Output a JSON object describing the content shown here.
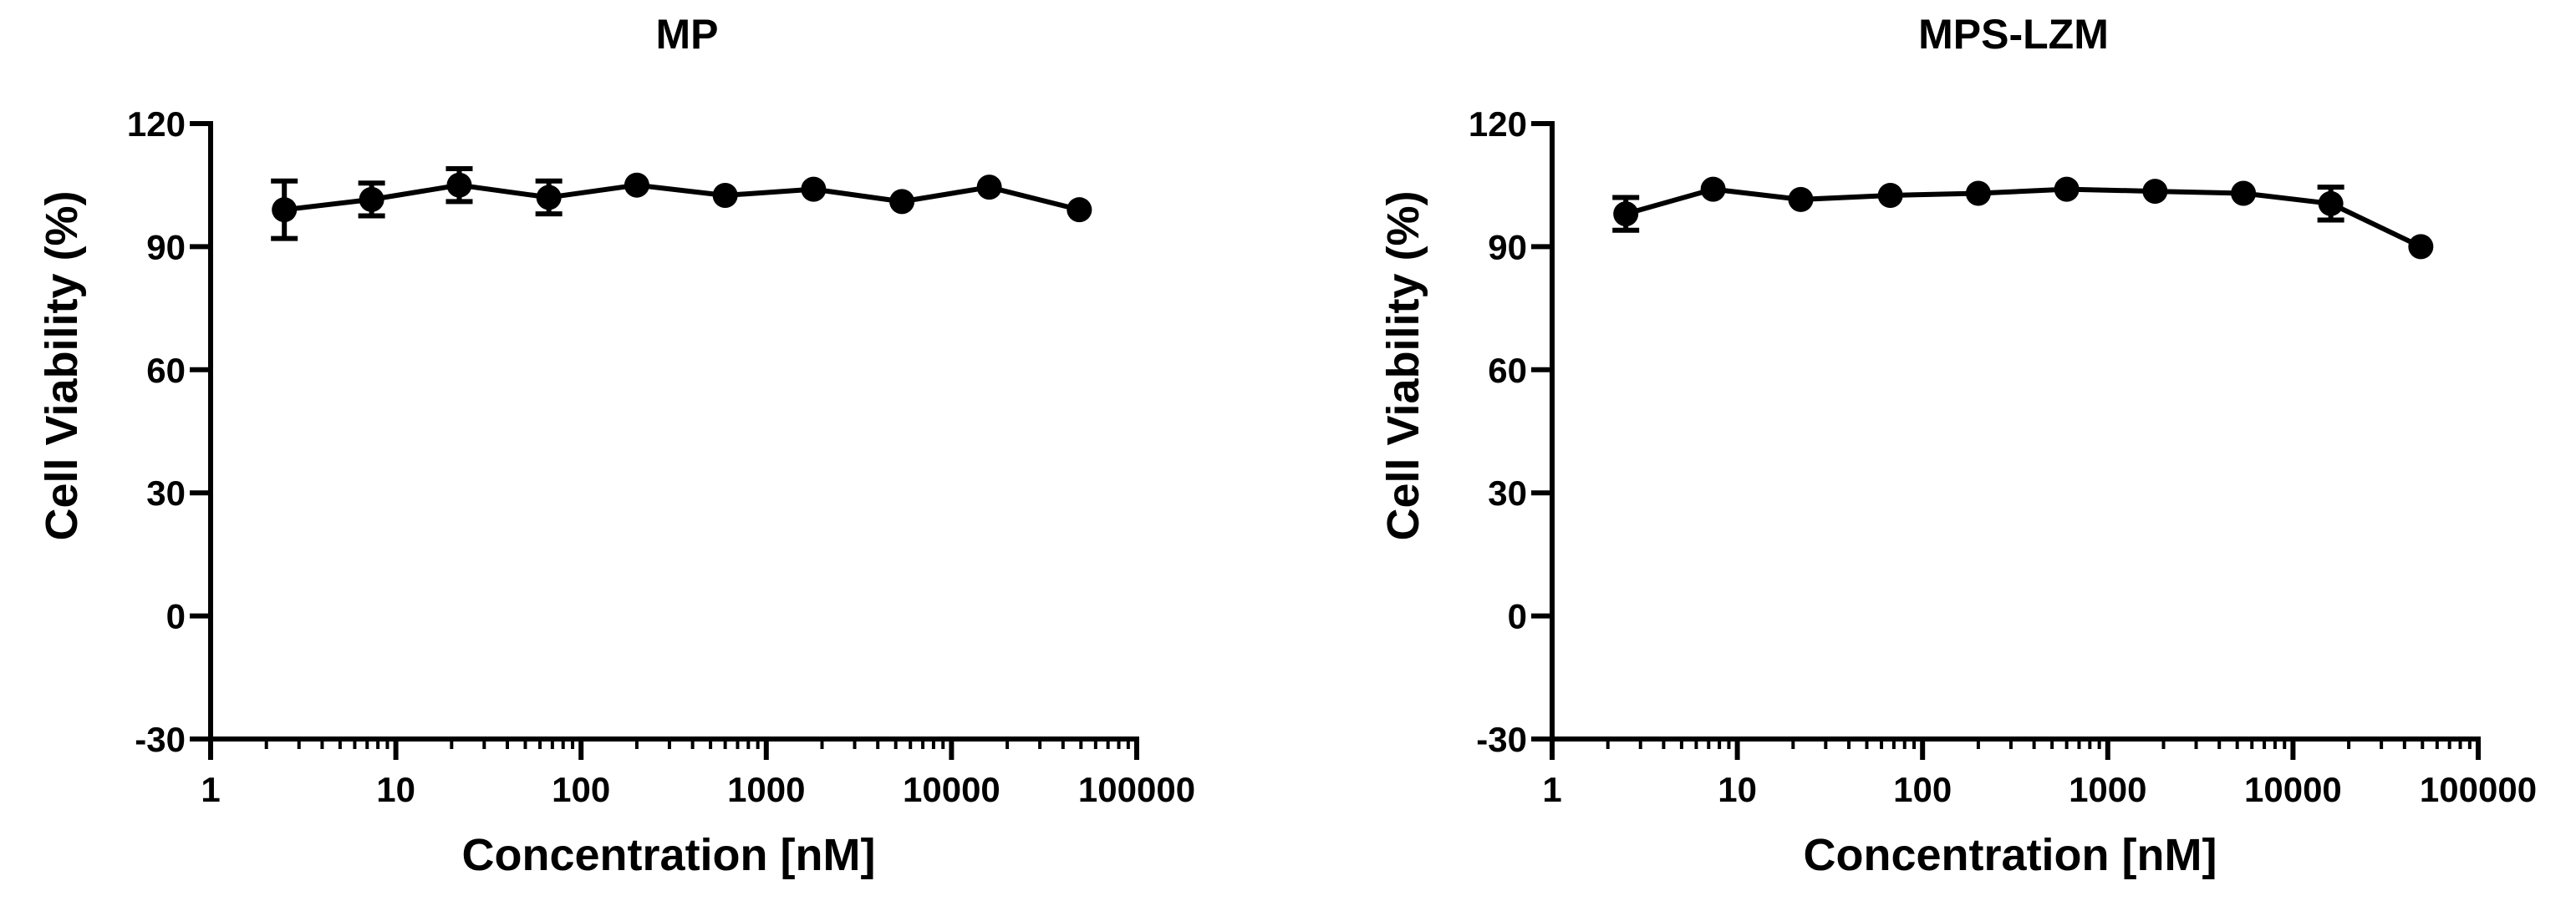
{
  "chart_data": [
    {
      "type": "line",
      "title": "MP",
      "xlabel": "Concentration [nM]",
      "ylabel": "Cell Viability (%)",
      "x_scale": "log",
      "xlim": [
        1,
        100000
      ],
      "ylim": [
        -30,
        120
      ],
      "x_ticks": [
        "1",
        "10",
        "100",
        "1000",
        "10000",
        "100000"
      ],
      "y_ticks": [
        "120",
        "90",
        "60",
        "30",
        "0",
        "-30"
      ],
      "grid": false,
      "series": [
        {
          "x": [
            2.5,
            7.4,
            22,
            67,
            200,
            600,
            1800,
            5400,
            16000,
            49000
          ],
          "y": [
            99,
            101.5,
            105,
            102,
            105,
            102.5,
            104,
            101,
            104.5,
            99
          ],
          "error": [
            7,
            4,
            4,
            4,
            0,
            0,
            0,
            0,
            0,
            0
          ]
        }
      ]
    },
    {
      "type": "line",
      "title": "MPS-LZM",
      "xlabel": "Concentration [nM]",
      "ylabel": "Cell Viability (%)",
      "x_scale": "log",
      "xlim": [
        1,
        100000
      ],
      "ylim": [
        -30,
        120
      ],
      "x_ticks": [
        "1",
        "10",
        "100",
        "1000",
        "10000",
        "100000"
      ],
      "y_ticks": [
        "120",
        "90",
        "60",
        "30",
        "0",
        "-30"
      ],
      "grid": false,
      "series": [
        {
          "x": [
            2.5,
            7.4,
            22,
            67,
            200,
            600,
            1800,
            5400,
            16000,
            49000
          ],
          "y": [
            98,
            104,
            101.5,
            102.5,
            103,
            104,
            103.5,
            103,
            100.5,
            90
          ],
          "error": [
            4,
            0,
            0,
            0,
            0,
            0,
            0,
            0,
            4,
            0
          ]
        }
      ]
    }
  ]
}
